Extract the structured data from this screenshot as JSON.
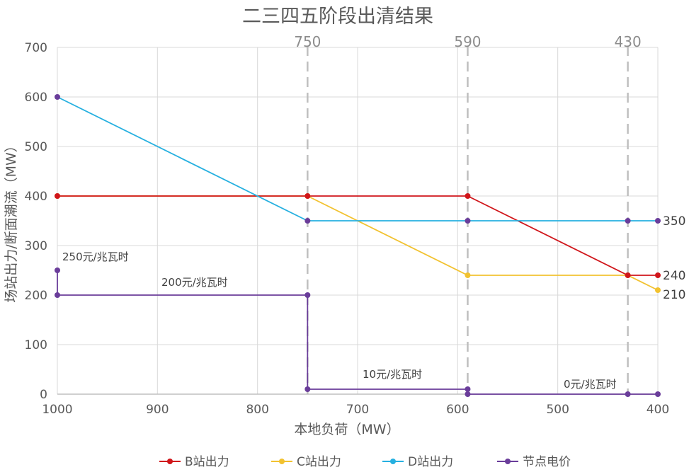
{
  "chart_data": {
    "type": "line",
    "title": "二三四五阶段出清结果",
    "xlabel": "本地负荷（MW）",
    "ylabel": "场站出力/断面潮流（MW）",
    "xlim": [
      1000,
      400
    ],
    "x_reversed": true,
    "ylim": [
      0,
      700
    ],
    "x_ticks": [
      "1000",
      "900",
      "800",
      "700",
      "600",
      "500",
      "400"
    ],
    "x_tick_values": [
      1000,
      900,
      800,
      700,
      600,
      500,
      400
    ],
    "y_ticks": [
      "0",
      "100",
      "200",
      "300",
      "400",
      "500",
      "600",
      "700"
    ],
    "y_tick_values": [
      0,
      100,
      200,
      300,
      400,
      500,
      600,
      700
    ],
    "grid": true,
    "legend_position": "bottom",
    "series": [
      {
        "name": "B站出力",
        "color": "#d0161b",
        "points": [
          [
            1000,
            400
          ],
          [
            750,
            400
          ],
          [
            590,
            400
          ],
          [
            430,
            240
          ],
          [
            400,
            240
          ]
        ]
      },
      {
        "name": "C站出力",
        "color": "#f2c230",
        "points": [
          [
            1000,
            400
          ],
          [
            750,
            400
          ],
          [
            590,
            240
          ],
          [
            430,
            240
          ],
          [
            400,
            210
          ]
        ]
      },
      {
        "name": "D站出力",
        "color": "#26b0e0",
        "points": [
          [
            1000,
            600
          ],
          [
            750,
            350
          ],
          [
            590,
            350
          ],
          [
            430,
            350
          ],
          [
            400,
            350
          ]
        ]
      },
      {
        "name": "节点电价",
        "color": "#6a3d9a",
        "points": [
          [
            1000,
            250
          ],
          [
            1000,
            200
          ],
          [
            750,
            200
          ],
          [
            750,
            10
          ],
          [
            590,
            10
          ],
          [
            590,
            0
          ],
          [
            430,
            0
          ],
          [
            400,
            0
          ]
        ]
      }
    ],
    "vertical_lines": [
      {
        "x": 750,
        "label": "750"
      },
      {
        "x": 590,
        "label": "590"
      },
      {
        "x": 430,
        "label": "430"
      }
    ],
    "end_labels": [
      {
        "y": 350,
        "label": "350"
      },
      {
        "y": 240,
        "label": "240"
      },
      {
        "y": 210,
        "label": "210"
      }
    ],
    "annotations": [
      {
        "x": 1000,
        "y": 250,
        "label": "250元/兆瓦时"
      },
      {
        "x": 875,
        "y": 200,
        "label": "200元/兆瓦时"
      },
      {
        "x": 670,
        "y": 10,
        "label": "10元/兆瓦时"
      },
      {
        "x": 470,
        "y": 0,
        "label": "0元/兆瓦时"
      }
    ]
  }
}
